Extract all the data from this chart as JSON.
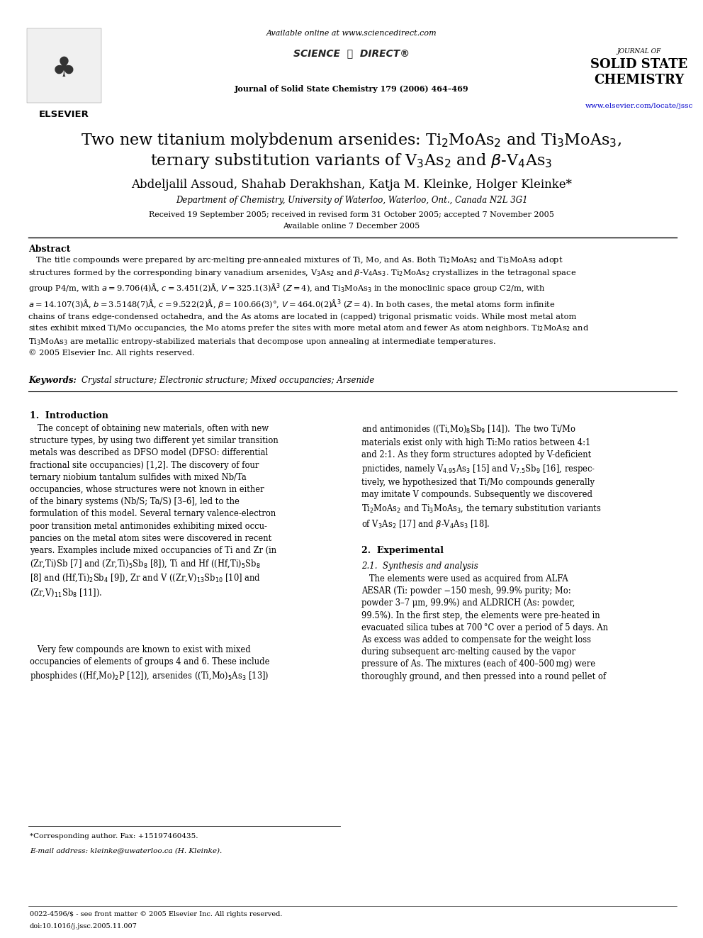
{
  "background_color": "#ffffff",
  "page_width": 9.92,
  "page_height": 13.23,
  "dpi": 100,
  "header": {
    "available_online": "Available online at www.sciencedirect.com",
    "sciencedirect": "SCIENCE ⓐ DIRECT®",
    "journal_line1": "JOURNAL OF",
    "journal_line2": "SOLID STATE",
    "journal_line3": "CHEMISTRY",
    "journal_citation": "Journal of Solid State Chemistry 179 (2006) 464–469",
    "url": "www.elsevier.com/locate/jssc",
    "elsevier": "ELSEVIER"
  },
  "title_line1": "Two new titanium molybdenum arsenides: Ti$_2$MoAs$_2$ and Ti$_3$MoAs$_3$,",
  "title_line2": "ternary substitution variants of V$_3$As$_2$ and $\\beta$-V$_4$As$_3$",
  "authors": "Abdeljalil Assoud, Shahab Derakhshan, Katja M. Kleinke, Holger Kleinke*",
  "affiliation": "Department of Chemistry, University of Waterloo, Waterloo, Ont., Canada N2L 3G1",
  "received": "Received 19 September 2005; received in revised form 31 October 2005; accepted 7 November 2005",
  "available": "Available online 7 December 2005",
  "abstract_label": "Abstract",
  "keywords_label": "Keywords:",
  "keywords_text": "Crystal structure; Electronic structure; Mixed occupancies; Arsenide",
  "section1_title": "1.  Introduction",
  "section2_title": "2.  Experimental",
  "section21_title": "2.1.  Synthesis and analysis",
  "footnote_star": "*Corresponding author. Fax: +15197460435.",
  "footnote_email": "E-mail address: kleinke@uwaterloo.ca (H. Kleinke).",
  "bottom_line1": "0022-4596/$ - see front matter © 2005 Elsevier Inc. All rights reserved.",
  "bottom_line2": "doi:10.1016/j.jssc.2005.11.007"
}
